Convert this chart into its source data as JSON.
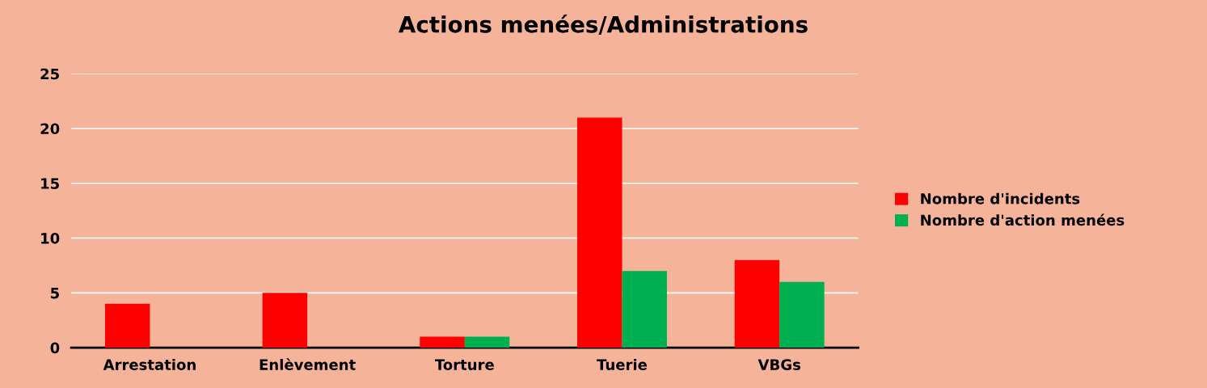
{
  "chart_data": {
    "type": "bar",
    "title": "Actions menées/Administrations",
    "categories": [
      "Arrestation",
      "Enlèvement",
      "Torture",
      "Tuerie",
      "VBGs"
    ],
    "series": [
      {
        "name": "Nombre d'incidents",
        "color": "#ff0000",
        "values": [
          4,
          5,
          1,
          21,
          8
        ]
      },
      {
        "name": "Nombre d'action menées",
        "color": "#00b050",
        "values": [
          0,
          0,
          1,
          7,
          6
        ]
      }
    ],
    "ylim": [
      0,
      25
    ],
    "yticks": [
      0,
      5,
      10,
      15,
      20,
      25
    ],
    "grid": "y",
    "legend": "right"
  }
}
